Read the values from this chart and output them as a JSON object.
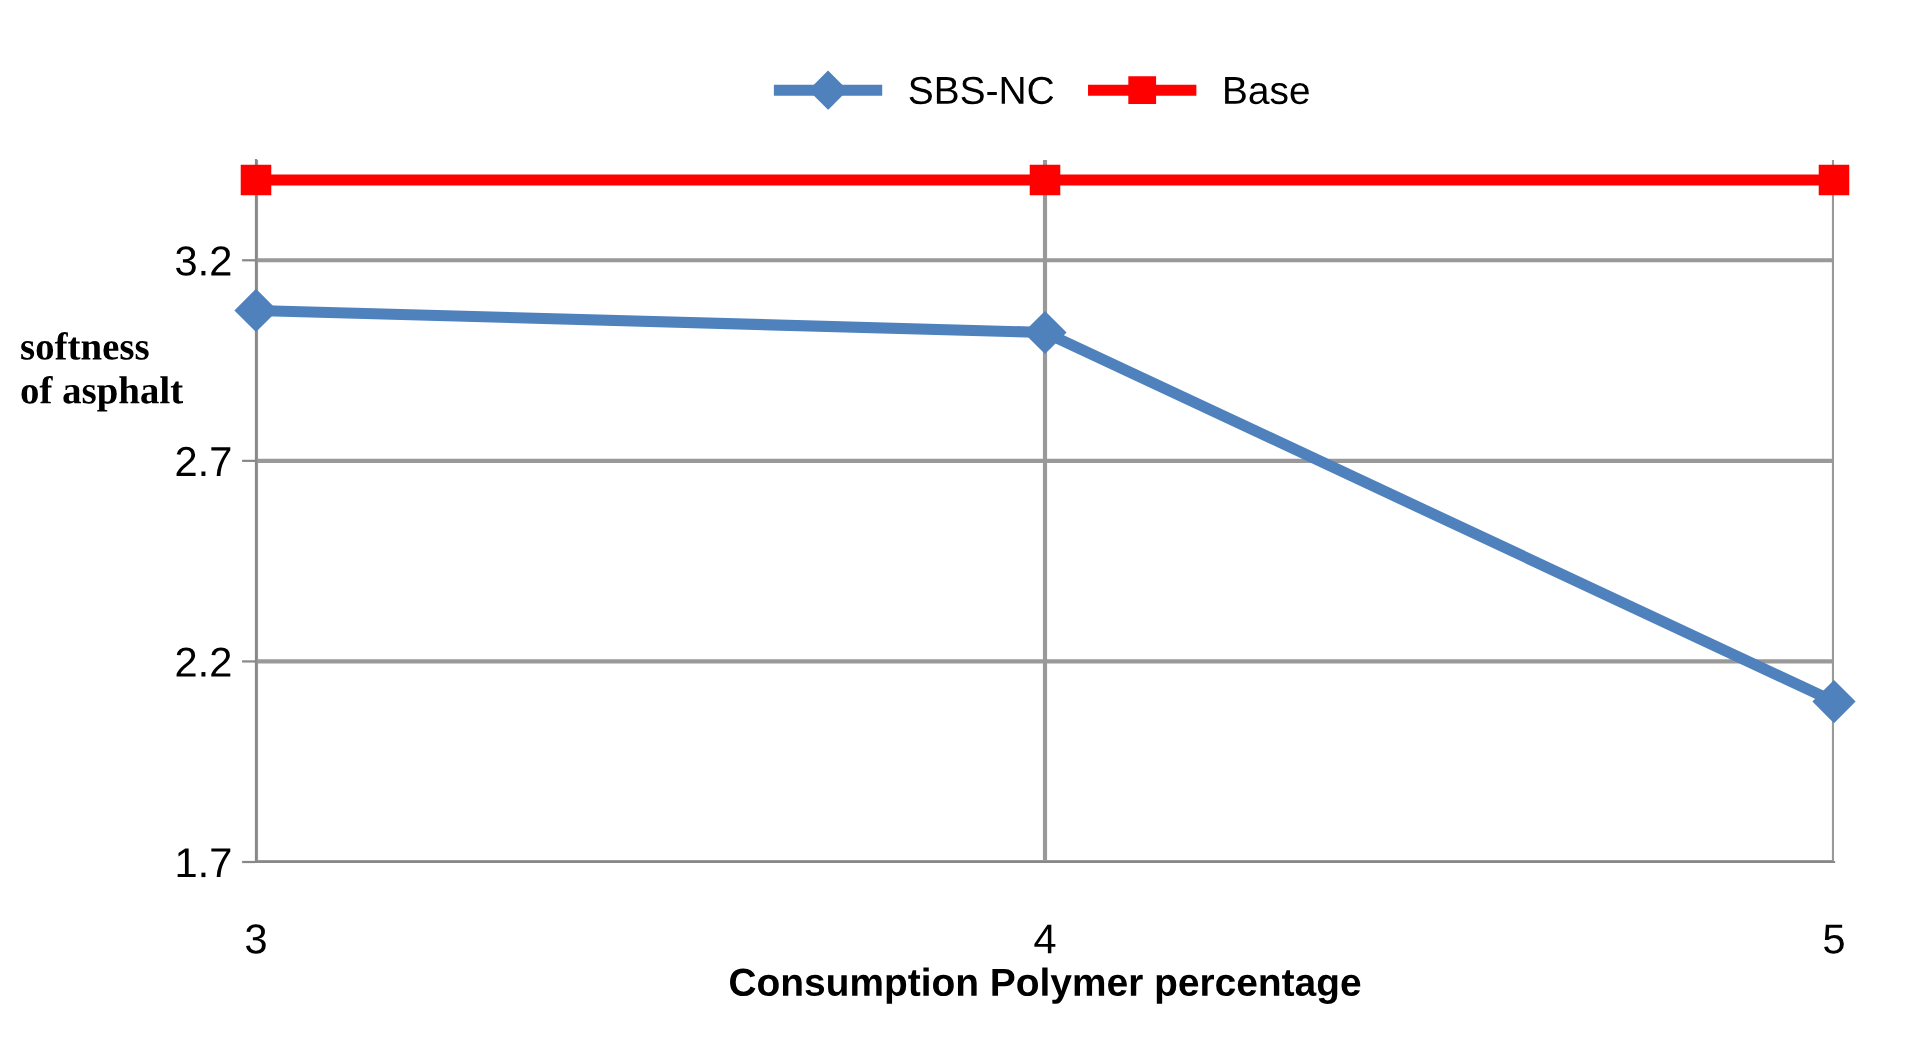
{
  "chart_data": {
    "type": "line",
    "xlabel": "Consumption Polymer percentage",
    "ylabel": "softness\nof asphalt",
    "x": [
      3,
      4,
      5
    ],
    "series": [
      {
        "name": "SBS-NC",
        "color": "#4f81bd",
        "values": [
          3.075,
          3.02,
          2.1
        ],
        "marker": "diamond"
      },
      {
        "name": "Base",
        "color": "#ff0000",
        "values": [
          3.4,
          3.4,
          3.4
        ],
        "marker": "square"
      }
    ],
    "xlim": [
      3,
      5
    ],
    "xticks": [
      3,
      4,
      5
    ],
    "ylim": [
      1.7,
      3.45
    ],
    "yticks": [
      1.7,
      2.2,
      2.7,
      3.2
    ],
    "grid": true,
    "legend": "top"
  }
}
